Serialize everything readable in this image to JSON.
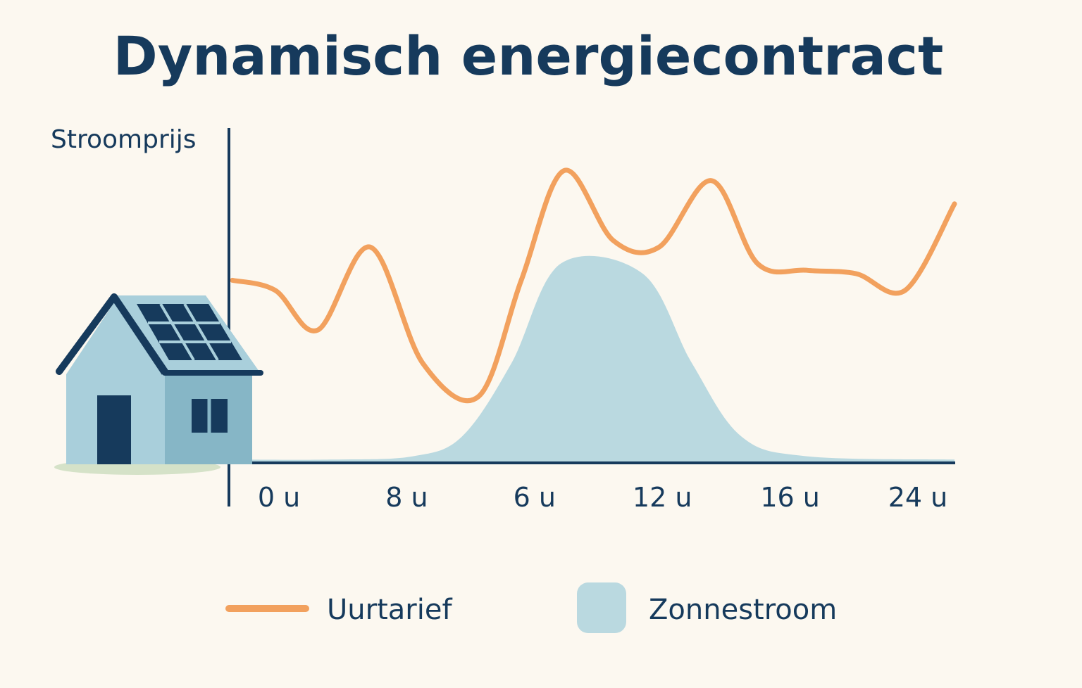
{
  "chart_data": {
    "type": "area",
    "title": "Dynamisch energiecontract",
    "ylabel": "Stroomprijs",
    "xlabel": "",
    "x_tick_labels": [
      "0 u",
      "8 u",
      "6 u",
      "12 u",
      "16 u",
      "24 u"
    ],
    "grid": false,
    "legend_placement": "bottom",
    "y_ticks_shown": false,
    "ylim": [
      0,
      100
    ],
    "series": [
      {
        "name": "Uurtarief",
        "type": "line",
        "color": "#f2a15e",
        "values": [
          55,
          52,
          40,
          65,
          30,
          20,
          55,
          88,
          67,
          65,
          85,
          60,
          58,
          57,
          52,
          78
        ],
        "x": [
          0,
          1.3,
          2.6,
          4.2,
          5.8,
          7.5,
          8.8,
          10.1,
          11.6,
          13,
          14.6,
          16,
          17.5,
          19,
          20.5,
          22
        ]
      },
      {
        "name": "Zonnestroom",
        "type": "area",
        "color": "#bad9e0",
        "values": [
          1,
          1,
          2,
          8,
          30,
          60,
          57,
          30,
          8,
          2,
          1
        ],
        "x": [
          0,
          3,
          5.5,
          7,
          8.5,
          10,
          12.5,
          14,
          15.5,
          17.5,
          22
        ]
      }
    ],
    "colors": {
      "axis": "#163a5c",
      "background": "#fcf8f0",
      "house_front": "#a9cfdb",
      "house_side": "#86b6c6",
      "house_dark": "#163a5c",
      "ground": "#d5e2c8"
    },
    "icons": [
      "house-with-solar-panels-icon"
    ]
  }
}
